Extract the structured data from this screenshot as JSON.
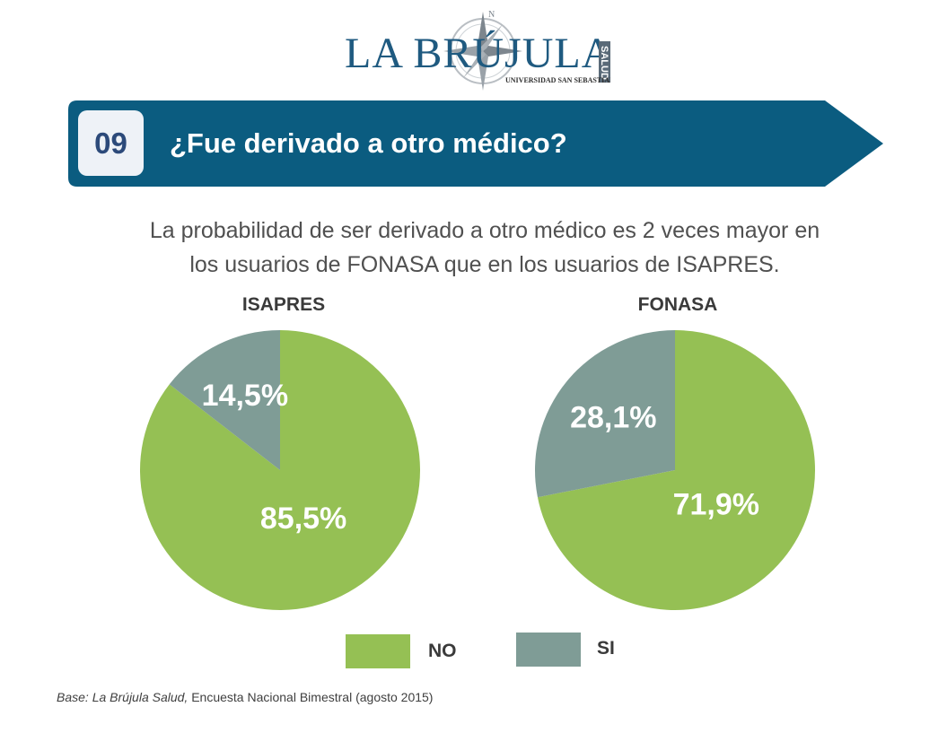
{
  "logo": {
    "brand": "LA BRÚJULA",
    "side_text": "SALUD",
    "tagline": "UNIVERSIDAD SAN SEBASTIAN"
  },
  "header": {
    "number": "09",
    "title": "¿Fue derivado a otro médico?"
  },
  "subtitle": {
    "line1": "La probabilidad de ser derivado a otro médico es 2 veces mayor en",
    "line2": "los usuarios de FONASA que en los usuarios de ISAPRES."
  },
  "colors": {
    "banner": "#0b5c80",
    "no": "#95c054",
    "si": "#7f9c96",
    "label_text": "#ffffff"
  },
  "chart_data": [
    {
      "type": "pie",
      "title": "ISAPRES",
      "categories": [
        "NO",
        "SI"
      ],
      "values": [
        85.5,
        14.5
      ],
      "labels": [
        "85,5%",
        "14,5%"
      ]
    },
    {
      "type": "pie",
      "title": "FONASA",
      "categories": [
        "NO",
        "SI"
      ],
      "values": [
        71.9,
        28.1
      ],
      "labels": [
        "71,9%",
        "28,1%"
      ]
    }
  ],
  "legend": {
    "no_label": "NO",
    "si_label": "SI",
    "placement": "bottom-center"
  },
  "footnote": {
    "source_italic": "Base: La Brújula Salud,",
    "source_rest": " Encuesta Nacional Bimestral (agosto 2015)"
  }
}
